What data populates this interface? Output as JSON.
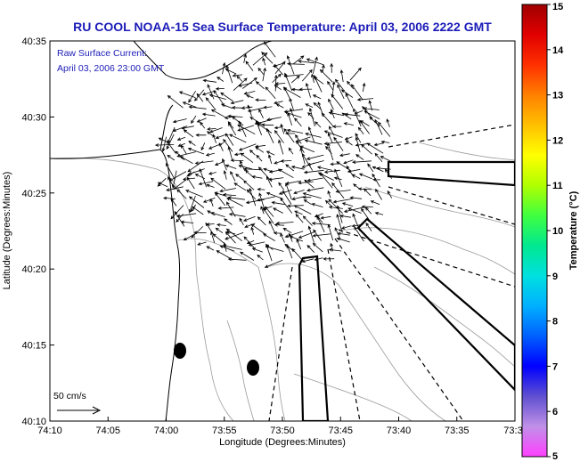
{
  "chart_data": {
    "type": "vector-map",
    "title": "RU COOL  NOAA-15  Sea Surface Temperature:  April 03, 2006 2222 GMT",
    "annotation_lines": [
      "Raw Surface Current:",
      "April 03, 2006 23:00 GMT"
    ],
    "xlabel": "Longitude (Degrees:Minutes)",
    "ylabel": "Latitude (Degrees:Minutes)",
    "x_tick_labels": [
      "74:10",
      "74:05",
      "74:00",
      "73:55",
      "73:50",
      "73:45",
      "73:40",
      "73:35",
      "73:3"
    ],
    "y_tick_labels": [
      "40:35",
      "40:30",
      "40:25",
      "40:20",
      "40:15",
      "40:10"
    ],
    "colorbar": {
      "label": "Temperature (°C)",
      "range": [
        5,
        15
      ],
      "tick_labels": [
        "15",
        "14",
        "13",
        "12",
        "11",
        "10",
        "9",
        "8",
        "7",
        "6",
        "5"
      ],
      "colors": [
        "#ff40ff",
        "#c090e8",
        "#6050d0",
        "#0000ff",
        "#0060ff",
        "#00b0ff",
        "#00e0e0",
        "#00e890",
        "#40ff40",
        "#b0ff00",
        "#ffff00",
        "#ffc000",
        "#ff8000",
        "#ff3000",
        "#e00000",
        "#a00000"
      ]
    },
    "scale_arrow_label": "50 cm/s",
    "grid": false
  }
}
